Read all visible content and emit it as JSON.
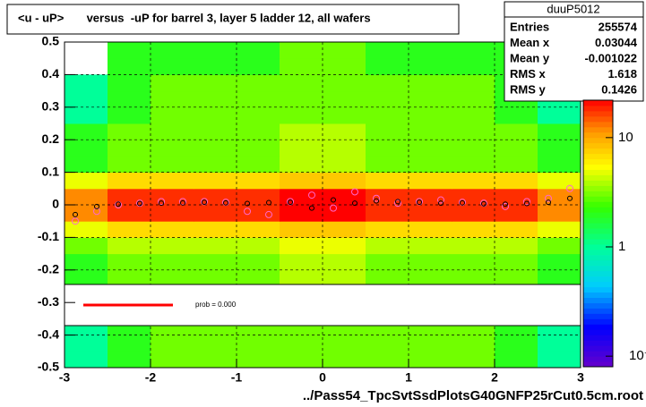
{
  "chart_data": {
    "type": "heatmap",
    "title": "<u - uP>       versus  -uP for barrel 3, layer 5 ladder 12, all wafers",
    "xlabel": "../Pass54_TpcSvtSsdPlotsG40GNFP25rCut0.5cm.root",
    "xlim": [
      -3,
      3
    ],
    "ylim": [
      -0.5,
      0.5
    ],
    "xticks": [
      -3,
      -2,
      -1,
      0,
      1,
      2,
      3
    ],
    "yticks": [
      -0.5,
      -0.4,
      -0.3,
      -0.2,
      -0.1,
      0,
      0.1,
      0.2,
      0.3,
      0.4,
      0.5
    ],
    "grid": true,
    "zlim": [
      0.08,
      22
    ],
    "zlog": true,
    "zticks": [
      {
        "value": 0.1,
        "label": "10⁻¹"
      },
      1,
      10
    ],
    "x_bins": [
      -3,
      -2.5,
      -2,
      -1.5,
      -1,
      -0.5,
      0,
      0.5,
      1,
      1.5,
      2,
      2.5,
      3
    ],
    "y_bins": [
      -0.5,
      -0.45,
      -0.4,
      -0.35,
      -0.3,
      -0.25,
      -0.2,
      -0.15,
      -0.1,
      -0.05,
      0,
      0.05,
      0.1,
      0.15,
      0.2,
      0.25,
      0.3,
      0.35,
      0.4,
      0.45,
      0.5
    ],
    "z": [
      [
        1,
        2,
        3,
        3,
        3,
        3,
        3,
        3,
        3,
        3,
        2,
        1
      ],
      [
        1,
        2,
        3,
        3,
        3,
        3,
        3,
        3,
        3,
        3,
        2,
        1
      ],
      [
        1,
        2,
        3,
        3,
        3,
        3,
        3,
        3,
        3,
        3,
        2,
        1
      ],
      [
        1,
        2,
        3,
        3,
        3,
        3,
        3,
        3,
        3,
        3,
        2,
        1
      ],
      [
        1,
        2,
        3,
        3,
        3,
        3,
        3,
        3,
        3,
        3,
        2,
        1
      ],
      [
        2,
        3,
        3,
        3,
        3,
        4,
        4,
        3,
        3,
        3,
        3,
        2
      ],
      [
        2,
        3,
        3,
        3,
        3,
        4,
        4,
        3,
        3,
        3,
        3,
        2
      ],
      [
        3,
        4,
        4,
        4,
        4,
        5,
        5,
        4,
        4,
        4,
        4,
        3
      ],
      [
        5,
        7,
        7,
        7,
        7,
        8,
        8,
        7,
        7,
        7,
        7,
        5
      ],
      [
        12,
        18,
        18,
        18,
        18,
        22,
        22,
        18,
        18,
        18,
        18,
        12
      ],
      [
        12,
        18,
        18,
        18,
        18,
        22,
        22,
        18,
        18,
        18,
        18,
        12
      ],
      [
        5,
        7,
        7,
        7,
        7,
        8,
        8,
        7,
        7,
        7,
        7,
        5
      ],
      [
        2,
        3,
        3,
        3,
        3,
        4,
        4,
        3,
        3,
        3,
        3,
        2
      ],
      [
        2,
        3,
        3,
        3,
        3,
        4,
        4,
        3,
        3,
        3,
        3,
        2
      ],
      [
        2,
        3,
        3,
        3,
        3,
        4,
        4,
        3,
        3,
        3,
        3,
        2
      ],
      [
        1,
        2,
        3,
        3,
        3,
        3,
        3,
        3,
        3,
        3,
        2,
        1
      ],
      [
        1,
        2,
        3,
        3,
        3,
        3,
        3,
        3,
        3,
        3,
        2,
        1
      ],
      [
        1,
        2,
        3,
        3,
        3,
        3,
        3,
        3,
        3,
        3,
        2,
        1
      ],
      [
        0,
        2,
        2,
        2,
        2,
        3,
        3,
        2,
        2,
        2,
        2,
        1
      ],
      [
        0,
        2,
        2,
        2,
        2,
        3,
        3,
        2,
        2,
        2,
        2,
        1
      ]
    ],
    "profile_x": [
      -2.875,
      -2.625,
      -2.375,
      -2.125,
      -1.875,
      -1.625,
      -1.375,
      -1.125,
      -0.875,
      -0.625,
      -0.375,
      -0.125,
      0.125,
      0.375,
      0.625,
      0.875,
      1.125,
      1.375,
      1.625,
      1.875,
      2.125,
      2.375,
      2.625,
      2.875
    ],
    "profiles": [
      {
        "color": "#ff66cc",
        "values": [
          -0.05,
          -0.02,
          0,
          0.005,
          0.01,
          0.01,
          0.01,
          0.008,
          -0.02,
          -0.03,
          0.01,
          0.03,
          -0.01,
          0.04,
          0.02,
          0.005,
          0.01,
          0.015,
          0.008,
          0.005,
          -0.005,
          0.01,
          0.02,
          0.05
        ]
      },
      {
        "color": "#000000",
        "values": [
          -0.03,
          -0.005,
          0.002,
          0.004,
          0.005,
          0.006,
          0.008,
          0.006,
          0.004,
          0.007,
          0.008,
          -0.01,
          0.015,
          0.005,
          0.012,
          0.01,
          0.008,
          0.005,
          0.006,
          0.003,
          0.002,
          0.004,
          0.008,
          0.02
        ]
      }
    ],
    "fit_label": "prob = 0.000",
    "fit_color": "#ff0000",
    "stats": {
      "name": "duuP5012",
      "rows": [
        [
          "Entries",
          "255574"
        ],
        [
          "Mean x",
          "0.03044"
        ],
        [
          "Mean y",
          "-0.001022"
        ],
        [
          "RMS x",
          "1.618"
        ],
        [
          "RMS y",
          "0.1426"
        ]
      ]
    }
  }
}
